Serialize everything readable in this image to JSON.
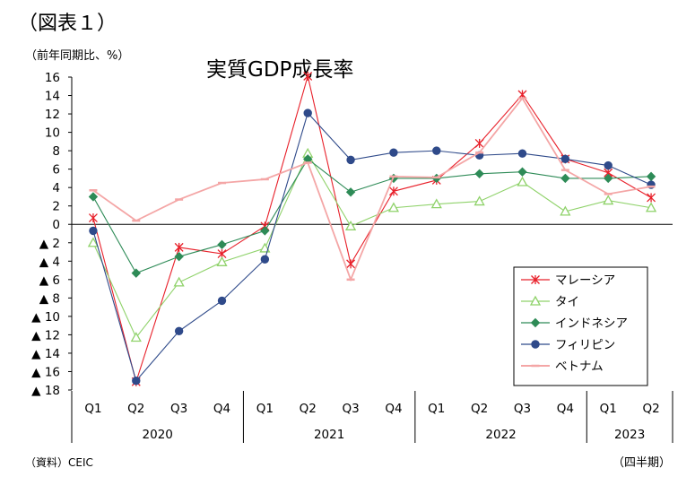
{
  "header": {
    "figure_label": "（図表１）",
    "unit_label": "（前年同期比、%）",
    "title": "実質GDP成長率"
  },
  "footer": {
    "source": "（資料）CEIC",
    "period_unit": "（四半期）"
  },
  "chart_data": {
    "type": "line",
    "title": "実質GDP成長率",
    "ylim": [
      -18,
      16
    ],
    "yticks": [
      16,
      14,
      12,
      10,
      8,
      6,
      4,
      2,
      0,
      -2,
      -4,
      -6,
      -8,
      -10,
      -12,
      -14,
      -16,
      -18
    ],
    "ytick_labels": [
      "16",
      "14",
      "12",
      "10",
      "8",
      "6",
      "4",
      "2",
      "0",
      "▲ 2",
      "▲ 4",
      "▲ 6",
      "▲ 8",
      "▲ 10",
      "▲ 12",
      "▲ 14",
      "▲ 16",
      "▲ 18"
    ],
    "categories": [
      "Q1",
      "Q2",
      "Q3",
      "Q4",
      "Q1",
      "Q2",
      "Q3",
      "Q4",
      "Q1",
      "Q2",
      "Q3",
      "Q4",
      "Q1",
      "Q2"
    ],
    "year_groups": [
      {
        "label": "2020",
        "count": 4
      },
      {
        "label": "2021",
        "count": 4
      },
      {
        "label": "2022",
        "count": 4
      },
      {
        "label": "2023",
        "count": 2
      }
    ],
    "legend_position": "bottom-right",
    "grid": false,
    "series": [
      {
        "name": "マレーシア",
        "color": "#e8202a",
        "marker": "asterisk",
        "values": [
          0.7,
          -17.1,
          -2.5,
          -3.2,
          -0.2,
          16.1,
          -4.3,
          3.6,
          4.8,
          8.8,
          14.1,
          7.1,
          5.6,
          2.9
        ]
      },
      {
        "name": "タイ",
        "color": "#8fd26a",
        "marker": "triangle",
        "values": [
          -2.0,
          -12.3,
          -6.3,
          -4.1,
          -2.6,
          7.7,
          -0.2,
          1.8,
          2.2,
          2.5,
          4.6,
          1.4,
          2.6,
          1.8
        ]
      },
      {
        "name": "インドネシア",
        "color": "#2e8b57",
        "marker": "diamond",
        "values": [
          3.0,
          -5.3,
          -3.5,
          -2.2,
          -0.7,
          7.1,
          3.5,
          5.0,
          5.0,
          5.5,
          5.7,
          5.0,
          5.0,
          5.2
        ]
      },
      {
        "name": "フィリピン",
        "color": "#2f4a8a",
        "marker": "circle",
        "values": [
          -0.7,
          -17.0,
          -11.6,
          -8.3,
          -3.8,
          12.1,
          7.0,
          7.8,
          8.0,
          7.5,
          7.7,
          7.1,
          6.4,
          4.3
        ]
      },
      {
        "name": "ベトナム",
        "color": "#f4a6a6",
        "marker": "dash",
        "values": [
          3.7,
          0.4,
          2.7,
          4.5,
          4.9,
          6.7,
          -6.0,
          5.2,
          5.1,
          7.8,
          13.7,
          5.9,
          3.3,
          4.1
        ]
      }
    ]
  }
}
